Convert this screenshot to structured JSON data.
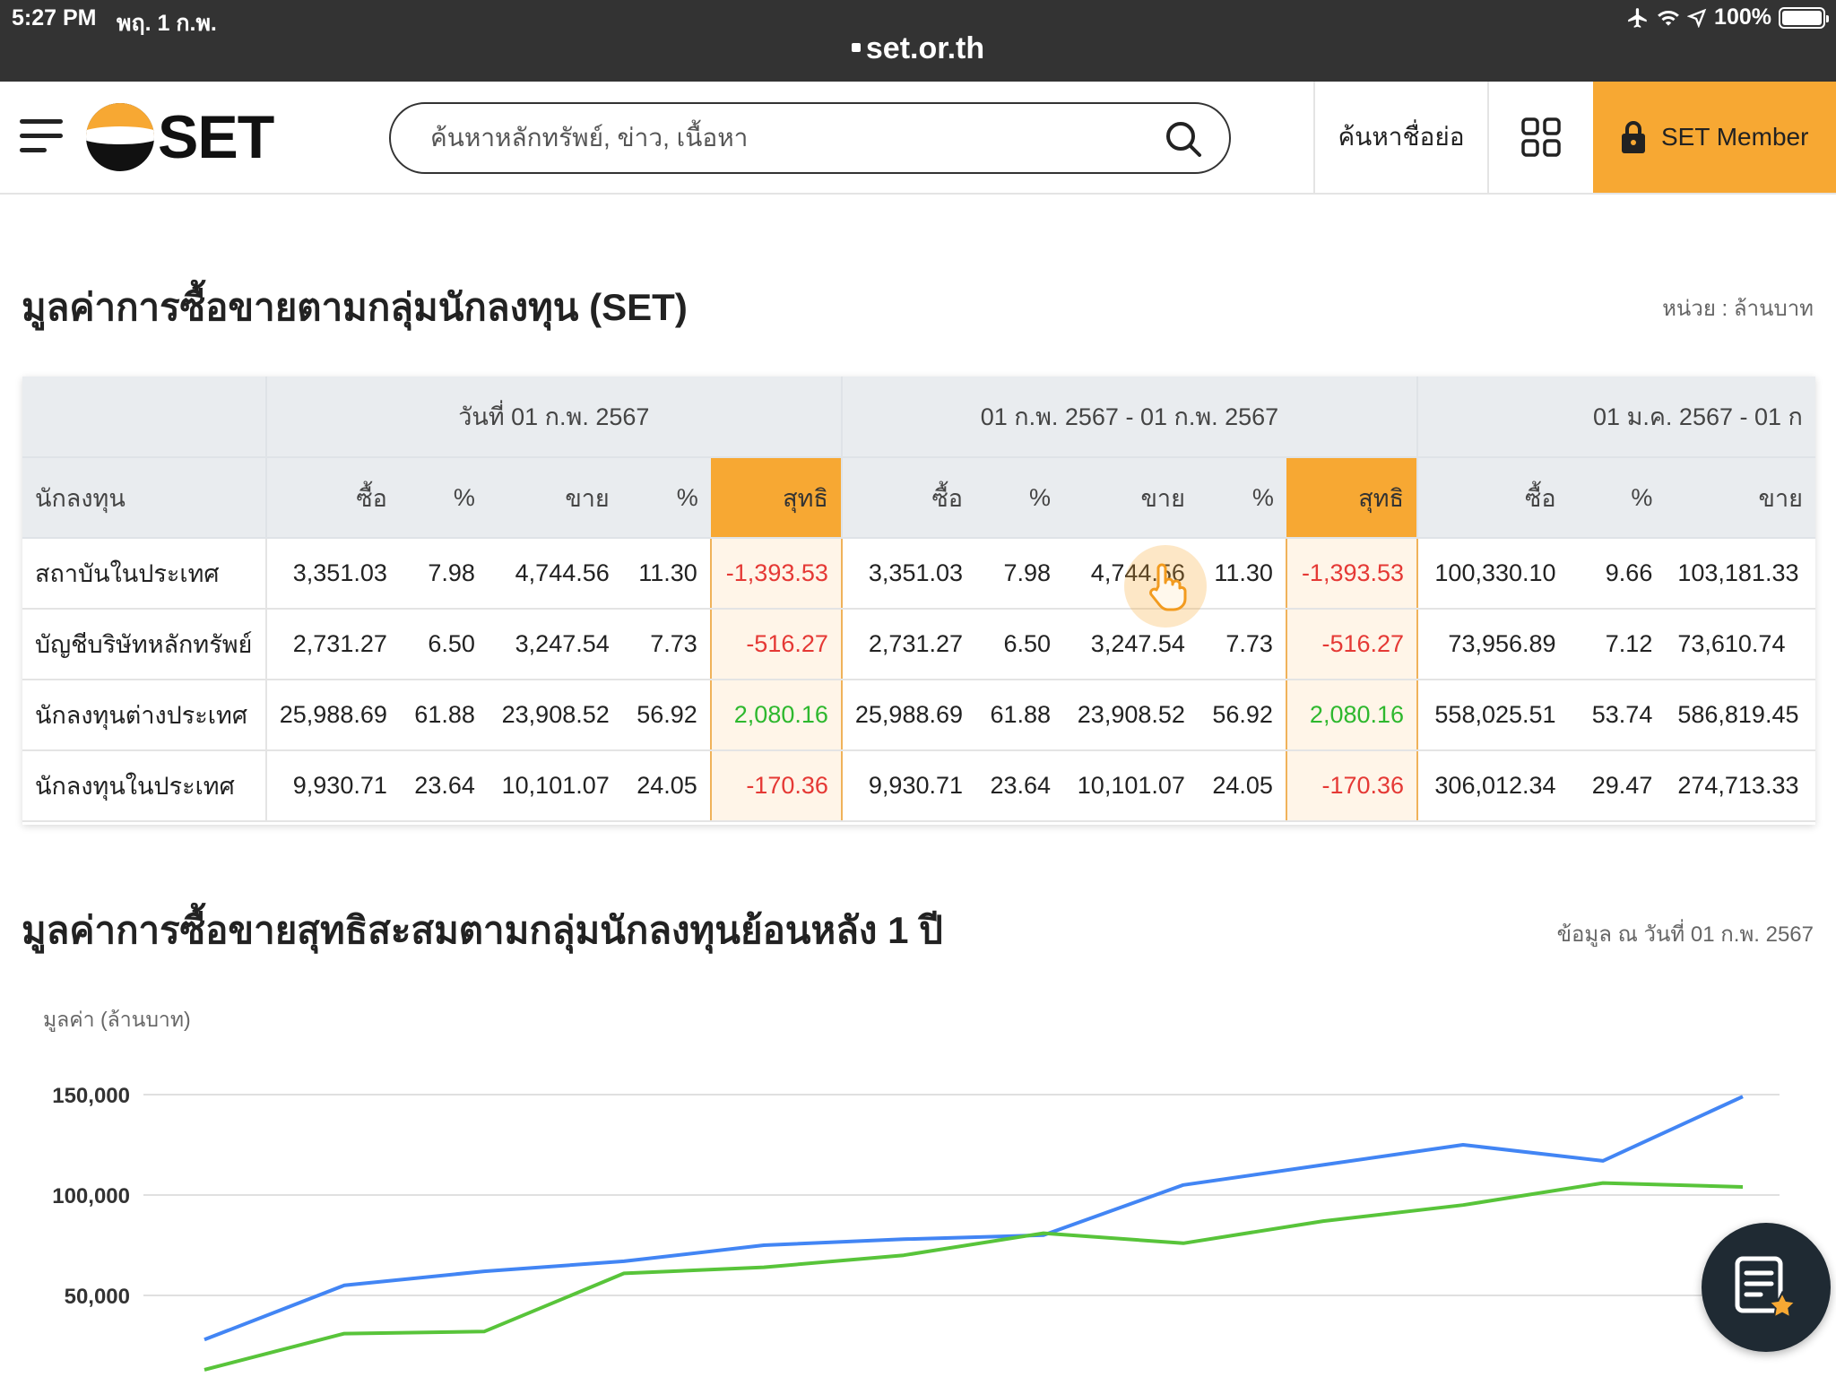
{
  "status_bar": {
    "time": "5:27 PM",
    "date": "พฤ. 1 ก.พ.",
    "battery": "100%",
    "url": "set.or.th"
  },
  "header": {
    "logo_text": "SET",
    "search_placeholder": "ค้นหาหลักทรัพย์, ข่าว, เนื้อหา",
    "symbol_search": "ค้นหาชื่อย่อ",
    "member_label": "SET Member"
  },
  "section1": {
    "title": "มูลค่าการซื้อขายตามกลุ่มนักลงทุน (SET)",
    "unit": "หน่วย : ล้านบาท",
    "periods": [
      "วันที่ 01 ก.พ. 2567",
      "01 ก.พ. 2567 - 01 ก.พ. 2567",
      "01 ม.ค. 2567 - 01 ก"
    ],
    "col_investor": "นักลงทุน",
    "cols": {
      "buy": "ซื้อ",
      "pct": "%",
      "sell": "ขาย",
      "net": "สุทธิ"
    },
    "cols_p3": {
      "buy": "ซื้อ",
      "pct": "%",
      "sell": "ขาย"
    },
    "rows": [
      {
        "investor": "สถาบันในประเทศ",
        "p1": {
          "buy": "3,351.03",
          "buy_pct": "7.98",
          "sell": "4,744.56",
          "sell_pct": "11.30",
          "net": "-1,393.53"
        },
        "p2": {
          "buy": "3,351.03",
          "buy_pct": "7.98",
          "sell": "4,744.56",
          "sell_pct": "11.30",
          "net": "-1,393.53"
        },
        "p3": {
          "buy": "100,330.10",
          "buy_pct": "9.66",
          "sell": "103,181.33"
        }
      },
      {
        "investor": "บัญชีบริษัทหลักทรัพย์",
        "p1": {
          "buy": "2,731.27",
          "buy_pct": "6.50",
          "sell": "3,247.54",
          "sell_pct": "7.73",
          "net": "-516.27"
        },
        "p2": {
          "buy": "2,731.27",
          "buy_pct": "6.50",
          "sell": "3,247.54",
          "sell_pct": "7.73",
          "net": "-516.27"
        },
        "p3": {
          "buy": "73,956.89",
          "buy_pct": "7.12",
          "sell": "73,610.74"
        }
      },
      {
        "investor": "นักลงทุนต่างประเทศ",
        "p1": {
          "buy": "25,988.69",
          "buy_pct": "61.88",
          "sell": "23,908.52",
          "sell_pct": "56.92",
          "net": "2,080.16"
        },
        "p2": {
          "buy": "25,988.69",
          "buy_pct": "61.88",
          "sell": "23,908.52",
          "sell_pct": "56.92",
          "net": "2,080.16"
        },
        "p3": {
          "buy": "558,025.51",
          "buy_pct": "53.74",
          "sell": "586,819.45"
        }
      },
      {
        "investor": "นักลงทุนในประเทศ",
        "p1": {
          "buy": "9,930.71",
          "buy_pct": "23.64",
          "sell": "10,101.07",
          "sell_pct": "24.05",
          "net": "-170.36"
        },
        "p2": {
          "buy": "9,930.71",
          "buy_pct": "23.64",
          "sell": "10,101.07",
          "sell_pct": "24.05",
          "net": "-170.36"
        },
        "p3": {
          "buy": "306,012.34",
          "buy_pct": "29.47",
          "sell": "274,713.33"
        }
      }
    ]
  },
  "section2": {
    "title": "มูลค่าการซื้อขายสุทธิสะสมตามกลุ่มนักลงทุนย้อนหลัง 1 ปี",
    "as_of": "ข้อมูล ณ วันที่ 01 ก.พ. 2567",
    "y_label": "มูลค่า (ล้านบาท)"
  },
  "chart_data": {
    "type": "line",
    "ylabel": "มูลค่า (ล้านบาท)",
    "y_ticks": [
      "150,000",
      "100,000",
      "50,000"
    ],
    "y_tick_values": [
      150000,
      100000,
      50000
    ],
    "x": [
      1,
      2,
      3,
      4,
      5,
      6,
      7,
      8,
      9,
      10,
      11,
      12
    ],
    "series": [
      {
        "color": "#4285f4",
        "values": [
          28000,
          55000,
          62000,
          67000,
          75000,
          78000,
          80000,
          105000,
          115000,
          125000,
          117000,
          149000
        ]
      },
      {
        "color": "#58c43a",
        "values": [
          13000,
          31000,
          32000,
          61000,
          64000,
          70000,
          81000,
          76000,
          87000,
          95000,
          106000,
          104000
        ]
      }
    ],
    "grid": true,
    "colors": {
      "grid": "#e0e0e0"
    }
  }
}
